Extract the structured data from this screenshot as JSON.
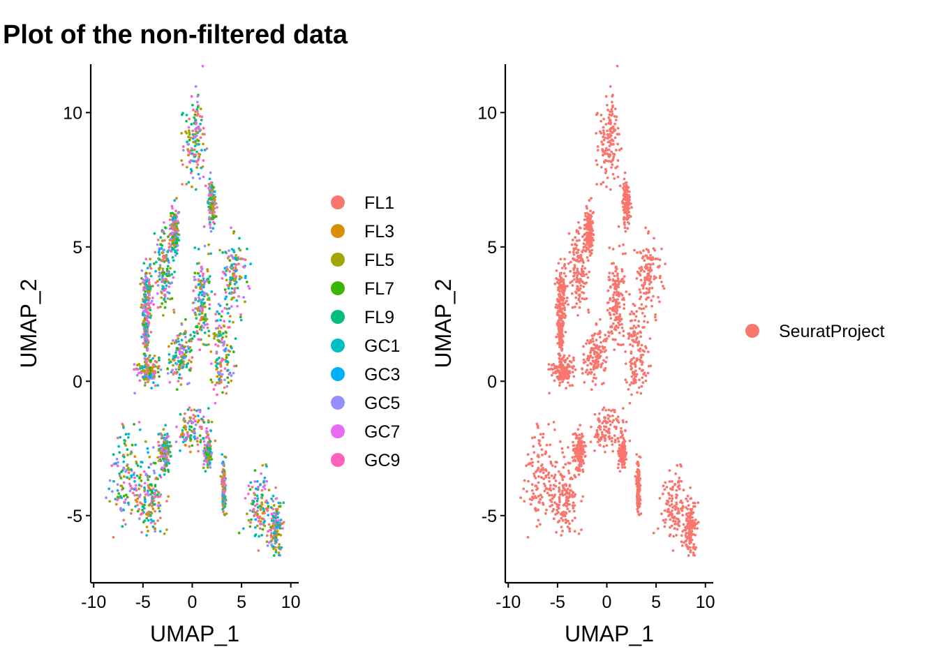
{
  "title": "Plot of the non-filtered data",
  "colors": {
    "FL1": "#F8766D",
    "FL3": "#D89000",
    "FL5": "#A3A500",
    "FL7": "#39B600",
    "FL9": "#00BF7D",
    "GC1": "#00BFC4",
    "GC3": "#00B0F6",
    "GC5": "#9590FF",
    "GC7": "#E76BF3",
    "GC9": "#FF62BC",
    "SeuratProject": "#F8766D"
  },
  "chart_data": [
    {
      "type": "scatter",
      "name": "left-panel",
      "xlabel": "UMAP_1",
      "ylabel": "UMAP_2",
      "xlim": [
        -10.3,
        10.8
      ],
      "ylim": [
        -7.5,
        11.8
      ],
      "xticks": [
        -10,
        -5,
        0,
        5,
        10
      ],
      "xtick_labels": [
        "-10",
        "-5",
        "0",
        "5",
        "10"
      ],
      "yticks": [
        -5,
        0,
        5,
        10
      ],
      "ytick_labels": [
        "-5",
        "0",
        "5",
        "10"
      ],
      "color_by": "orig.ident",
      "legend": [
        "FL1",
        "FL3",
        "FL5",
        "FL7",
        "FL9",
        "GC1",
        "GC3",
        "GC5",
        "GC7",
        "GC9"
      ],
      "legend_position": "right",
      "grid": false,
      "clusters": [
        {
          "center": [
            0.3,
            9.0
          ],
          "spread": [
            1.0,
            1.5
          ]
        },
        {
          "center": [
            2.0,
            6.6
          ],
          "spread": [
            0.35,
            0.7
          ]
        },
        {
          "center": [
            4.2,
            3.9
          ],
          "spread": [
            1.3,
            1.3
          ]
        },
        {
          "center": [
            3.0,
            1.0
          ],
          "spread": [
            0.95,
            1.8
          ]
        },
        {
          "center": [
            -2.8,
            4.2
          ],
          "spread": [
            0.9,
            1.4
          ]
        },
        {
          "center": [
            -4.6,
            3.2
          ],
          "spread": [
            0.45,
            0.9
          ]
        },
        {
          "center": [
            -1.8,
            5.6
          ],
          "spread": [
            0.4,
            0.8
          ]
        },
        {
          "center": [
            0.9,
            3.0
          ],
          "spread": [
            0.7,
            1.3
          ]
        },
        {
          "center": [
            -1.2,
            1.0
          ],
          "spread": [
            1.2,
            0.9
          ]
        },
        {
          "center": [
            -4.5,
            0.4
          ],
          "spread": [
            0.9,
            0.45
          ]
        },
        {
          "center": [
            -4.7,
            1.8
          ],
          "spread": [
            0.3,
            0.8
          ]
        },
        {
          "center": [
            0.0,
            -1.8
          ],
          "spread": [
            1.2,
            0.7
          ]
        },
        {
          "center": [
            1.6,
            -2.6
          ],
          "spread": [
            0.35,
            0.55
          ]
        },
        {
          "center": [
            -6.6,
            -3.6
          ],
          "spread": [
            1.6,
            1.5
          ]
        },
        {
          "center": [
            -4.2,
            -4.3
          ],
          "spread": [
            1.3,
            1.3
          ]
        },
        {
          "center": [
            -2.8,
            -2.6
          ],
          "spread": [
            0.6,
            0.6
          ]
        },
        {
          "center": [
            6.8,
            -4.7
          ],
          "spread": [
            1.2,
            1.0
          ]
        },
        {
          "center": [
            8.5,
            -5.5
          ],
          "spread": [
            0.55,
            0.9
          ]
        },
        {
          "center": [
            3.2,
            -3.9
          ],
          "spread": [
            0.18,
            0.9
          ]
        }
      ]
    },
    {
      "type": "scatter",
      "name": "right-panel",
      "xlabel": "UMAP_1",
      "ylabel": "UMAP_2",
      "xlim": [
        -10.3,
        10.8
      ],
      "ylim": [
        -7.5,
        11.8
      ],
      "xticks": [
        -10,
        -5,
        0,
        5,
        10
      ],
      "xtick_labels": [
        "-10",
        "-5",
        "0",
        "5",
        "10"
      ],
      "yticks": [
        -5,
        0,
        5,
        10
      ],
      "ytick_labels": [
        "-5",
        "0",
        "5",
        "10"
      ],
      "color_by": "orig.ident",
      "legend": [
        "SeuratProject"
      ],
      "legend_position": "right",
      "grid": false
    }
  ]
}
